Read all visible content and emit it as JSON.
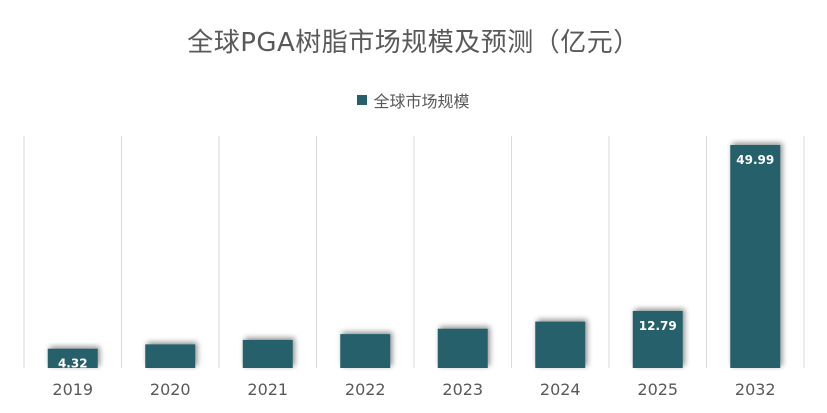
{
  "chart_data": {
    "type": "bar",
    "title": "全球PGA树脂市场规模及预测（亿元）",
    "categories": [
      "2019",
      "2020",
      "2021",
      "2022",
      "2023",
      "2024",
      "2025",
      "2032"
    ],
    "series": [
      {
        "name": "全球市场规模",
        "values": [
          4.32,
          5.3,
          6.3,
          7.6,
          8.8,
          10.4,
          12.79,
          49.99
        ],
        "labels": [
          "4.32",
          "",
          "",
          "",
          "",
          "",
          "12.79",
          "49.99"
        ]
      }
    ],
    "ylim": [
      0,
      52
    ],
    "legend_position": "top-center",
    "grid": "vertical-category-separators",
    "colors": {
      "bar": "#25606B",
      "grid": "#D9D9D9",
      "text": "#595959"
    }
  }
}
